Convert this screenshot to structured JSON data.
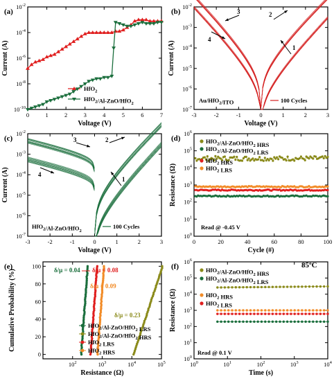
{
  "chart_data": [
    {
      "panel": "(a)",
      "type": "line",
      "xlabel": "Voltage (V)",
      "ylabel": "Current (A)",
      "xlim": [
        0,
        7
      ],
      "ylim_log": [
        -10,
        -2
      ],
      "x_ticks": [
        "0",
        "1",
        "2",
        "3",
        "4",
        "5",
        "6",
        "7"
      ],
      "y_ticks": [
        "10^-10",
        "10^-8",
        "10^-6",
        "10^-4",
        "10^-2"
      ],
      "legend": "bottom-right",
      "series": [
        {
          "name": "HfO2",
          "color": "#e01f1f",
          "marker": "triangle-up",
          "points": [
            [
              0,
              -6.8
            ],
            [
              0.2,
              -6.5
            ],
            [
              0.4,
              -6.3
            ],
            [
              0.6,
              -6.2
            ],
            [
              0.8,
              -6.1
            ],
            [
              1,
              -5.9
            ],
            [
              1.2,
              -5.8
            ],
            [
              1.4,
              -5.7
            ],
            [
              1.6,
              -5.5
            ],
            [
              1.8,
              -5.3
            ],
            [
              2,
              -5.1
            ],
            [
              2.2,
              -4.9
            ],
            [
              2.4,
              -4.7
            ],
            [
              2.6,
              -4.5
            ],
            [
              2.8,
              -4.3
            ],
            [
              3,
              -4.1
            ],
            [
              3.2,
              -4.0
            ],
            [
              3.4,
              -4.0
            ],
            [
              3.6,
              -4.0
            ],
            [
              3.8,
              -4.0
            ],
            [
              4,
              -4.0
            ],
            [
              4.2,
              -4.0
            ],
            [
              4.4,
              -4.0
            ],
            [
              4.6,
              -3.9
            ],
            [
              4.8,
              -3.9
            ],
            [
              5,
              -3.8
            ],
            [
              5.2,
              -3.6
            ],
            [
              5.4,
              -3.4
            ],
            [
              5.6,
              -3.1
            ],
            [
              5.8,
              -3.0
            ],
            [
              6,
              -3.0
            ],
            [
              6.2,
              -3.0
            ],
            [
              6.4,
              -3.1
            ],
            [
              6.6,
              -3.1
            ],
            [
              6.8,
              -3.1
            ],
            [
              7,
              -3.1
            ]
          ]
        },
        {
          "name": "HfO2/Al-ZnO/HfO2",
          "color": "#1a6e3c",
          "marker": "triangle-down",
          "points": [
            [
              0,
              -10
            ],
            [
              0.2,
              -9.9
            ],
            [
              0.4,
              -9.8
            ],
            [
              0.6,
              -9.7
            ],
            [
              0.8,
              -9.6
            ],
            [
              1,
              -9.4
            ],
            [
              1.2,
              -9.3
            ],
            [
              1.4,
              -9.2
            ],
            [
              1.6,
              -9.1
            ],
            [
              1.8,
              -9.0
            ],
            [
              2,
              -8.9
            ],
            [
              2.2,
              -8.8
            ],
            [
              2.4,
              -8.6
            ],
            [
              2.6,
              -8.4
            ],
            [
              2.8,
              -8.2
            ],
            [
              3,
              -8.0
            ],
            [
              3.2,
              -7.8
            ],
            [
              3.4,
              -7.7
            ],
            [
              3.6,
              -7.6
            ],
            [
              3.8,
              -7.6
            ],
            [
              4,
              -7.5
            ],
            [
              4.2,
              -7.5
            ],
            [
              4.4,
              -7.4
            ],
            [
              4.5,
              -5.2
            ],
            [
              4.6,
              -3.2
            ],
            [
              4.8,
              -3.3
            ],
            [
              5,
              -3.4
            ],
            [
              5.2,
              -3.5
            ],
            [
              5.4,
              -3.5
            ],
            [
              5.6,
              -3.4
            ],
            [
              5.8,
              -3.3
            ],
            [
              6,
              -3.2
            ],
            [
              6.2,
              -3.3
            ],
            [
              6.4,
              -3.3
            ],
            [
              6.6,
              -3.3
            ],
            [
              6.8,
              -3.2
            ],
            [
              7,
              -3.2
            ]
          ]
        }
      ]
    },
    {
      "panel": "(b)",
      "type": "line",
      "xlabel": "Voltage (V)",
      "ylabel": "Current (A)",
      "xlim": [
        -3,
        3
      ],
      "ylim_log": [
        -7,
        -2
      ],
      "x_ticks": [
        "-3",
        "-2",
        "-1",
        "0",
        "1",
        "2",
        "3"
      ],
      "y_ticks": [
        "10^-7",
        "10^-6",
        "10^-5",
        "10^-4",
        "10^-3",
        "10^-2"
      ],
      "device_label": "Au/HfO2/ITO",
      "legend": "100 Cycles",
      "color": "#d42020",
      "arrows": [
        "1",
        "2",
        "3",
        "4"
      ]
    },
    {
      "panel": "(c)",
      "type": "line",
      "xlabel": "Voltage (V)",
      "ylabel": "Current (A)",
      "xlim": [
        -3,
        3
      ],
      "ylim_log": [
        -7,
        -2
      ],
      "x_ticks": [
        "-3",
        "-2",
        "-1",
        "0",
        "1",
        "2",
        "3"
      ],
      "y_ticks": [
        "10^-7",
        "10^-6",
        "10^-5",
        "10^-4",
        "10^-3",
        "10^-2"
      ],
      "device_label": "HfO2/Al-ZnO/HfO2",
      "legend": "100 Cycles",
      "color": "#1a6e3c",
      "arrows": [
        "1",
        "2",
        "3",
        "4"
      ]
    },
    {
      "panel": "(d)",
      "type": "scatter",
      "xlabel": "Cycle (#)",
      "ylabel": "Resistance (Ω)",
      "xlim": [
        0,
        100
      ],
      "ylim_log": [
        0,
        6
      ],
      "x_ticks": [
        "0",
        "20",
        "40",
        "60",
        "80",
        "100"
      ],
      "y_ticks": [
        "10^0",
        "10^1",
        "10^2",
        "10^3",
        "10^4",
        "10^5",
        "10^6"
      ],
      "annotation": "Read @ -0.45 V",
      "series": [
        {
          "name": "HfO2/Al-ZnO/HfO2 HRS",
          "color": "#8a8a1a",
          "level": 4.55
        },
        {
          "name": "HfO2/Al-ZnO/HfO2 LRS",
          "color": "#1a6e3c",
          "level": 2.35
        },
        {
          "name": "HfO2 HRS",
          "color": "#e01f1f",
          "level": 2.7
        },
        {
          "name": "HfO2 LRS",
          "color": "#f28c28",
          "level": 2.9
        }
      ]
    },
    {
      "panel": "(e)",
      "type": "scatter",
      "xlabel": "Resistance (Ω)",
      "ylabel": "Cumulative Probability (%)",
      "xlim_log": [
        1,
        5
      ],
      "ylim": [
        0,
        100
      ],
      "x_ticks": [
        "10^2",
        "10^3",
        "10^4",
        "10^5"
      ],
      "y_ticks": [
        "0",
        "20",
        "40",
        "60",
        "80",
        "100"
      ],
      "annotations": [
        {
          "text": "δ/μ = 0.04",
          "color": "#1a6e3c"
        },
        {
          "text": "δ/μ = 0.08",
          "color": "#e01f1f"
        },
        {
          "text": "δ/μ = 0.09",
          "color": "#f28c28"
        },
        {
          "text": "δ/μ = 0.23",
          "color": "#8a8a1a"
        }
      ],
      "series": [
        {
          "name": "HfO2/Al-ZnO/HfO2 LRS",
          "color": "#1a6e3c",
          "log_center": 2.4
        },
        {
          "name": "HfO2/Al-ZnO/HfO2 HRS",
          "color": "#8a8a1a",
          "log_center": 4.55
        },
        {
          "name": "HfO2 LRS",
          "color": "#e01f1f",
          "log_center": 2.72
        },
        {
          "name": "HfO2 HRS",
          "color": "#f28c28",
          "log_center": 2.95
        }
      ]
    },
    {
      "panel": "(f)",
      "type": "scatter",
      "xlabel": "Time (s)",
      "ylabel": "Resistance (Ω)",
      "xlim_log": [
        0,
        4
      ],
      "ylim_log": [
        0,
        6
      ],
      "x_ticks": [
        "10^0",
        "10^1",
        "10^2",
        "10^3",
        "10^4"
      ],
      "y_ticks": [
        "10^0",
        "10^1",
        "10^2",
        "10^3",
        "10^4",
        "10^5",
        "10^6"
      ],
      "annotation": "Read @ 0.1 V",
      "temperature": "85ºC",
      "series": [
        {
          "name": "HfO2/Al-ZnO/HfO2 HRS",
          "color": "#8a8a1a",
          "level": 4.4
        },
        {
          "name": "HfO2/Al-ZnO/HfO2 LRS",
          "color": "#1a6e3c",
          "level": 2.3
        },
        {
          "name": "HfO2 HRS",
          "color": "#f28c28",
          "level": 3.0
        },
        {
          "name": "HfO2 LRS",
          "color": "#e01f1f",
          "level": 2.78
        }
      ]
    }
  ]
}
